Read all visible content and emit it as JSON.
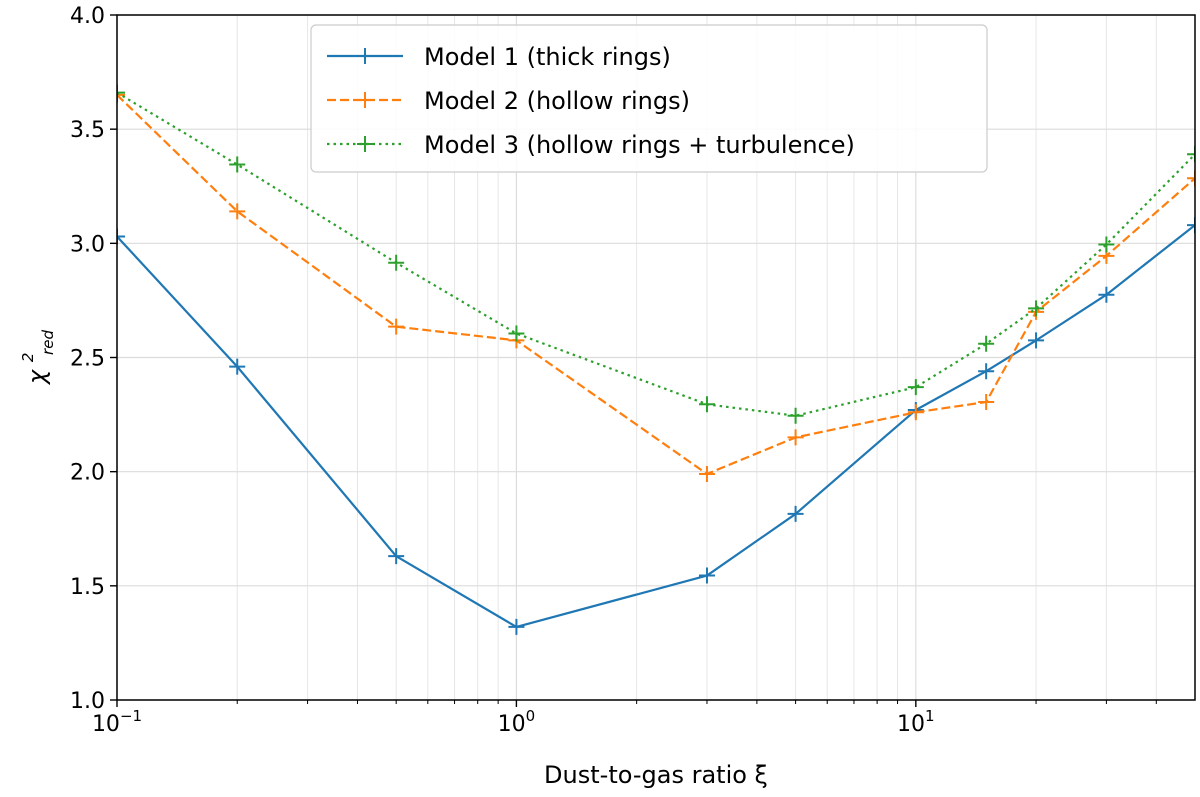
{
  "chart_data": {
    "type": "line",
    "xscale": "log",
    "xlim": [
      0.1,
      50
    ],
    "ylim": [
      1.0,
      4.0
    ],
    "xlabel": "Dust-to-gas ratio ξ",
    "ylabel_base": "χ",
    "ylabel_sup": "2",
    "ylabel_sub": "red",
    "grid": true,
    "legend_position": "upper center",
    "x_ticks": [
      {
        "value": 0.1,
        "mantissa": "10",
        "exponent": "−1"
      },
      {
        "value": 1,
        "mantissa": "10",
        "exponent": "0"
      },
      {
        "value": 10,
        "mantissa": "10",
        "exponent": "1"
      }
    ],
    "y_ticks": [
      {
        "value": 1.0,
        "label": "1.0"
      },
      {
        "value": 1.5,
        "label": "1.5"
      },
      {
        "value": 2.0,
        "label": "2.0"
      },
      {
        "value": 2.5,
        "label": "2.5"
      },
      {
        "value": 3.0,
        "label": "3.0"
      },
      {
        "value": 3.5,
        "label": "3.5"
      },
      {
        "value": 4.0,
        "label": "4.0"
      }
    ],
    "x": [
      0.1,
      0.2,
      0.5,
      1,
      3,
      5,
      10,
      15,
      20,
      30,
      50
    ],
    "series": [
      {
        "name": "Model 1 (thick rings)",
        "color": "#1f77b4",
        "dash": "solid",
        "values": [
          3.03,
          2.46,
          1.63,
          1.32,
          1.545,
          1.815,
          2.27,
          2.44,
          2.575,
          2.775,
          3.08
        ]
      },
      {
        "name": "Model 2 (hollow rings)",
        "color": "#ff7f0e",
        "dash": "dashed",
        "values": [
          3.65,
          3.14,
          2.635,
          2.575,
          1.99,
          2.15,
          2.26,
          2.305,
          2.7,
          2.945,
          3.285
        ]
      },
      {
        "name": "Model 3 (hollow rings + turbulence)",
        "color": "#2ca02c",
        "dash": "dotted",
        "values": [
          3.66,
          3.345,
          2.915,
          2.605,
          2.295,
          2.245,
          2.37,
          2.56,
          2.715,
          2.995,
          3.39
        ]
      }
    ]
  }
}
